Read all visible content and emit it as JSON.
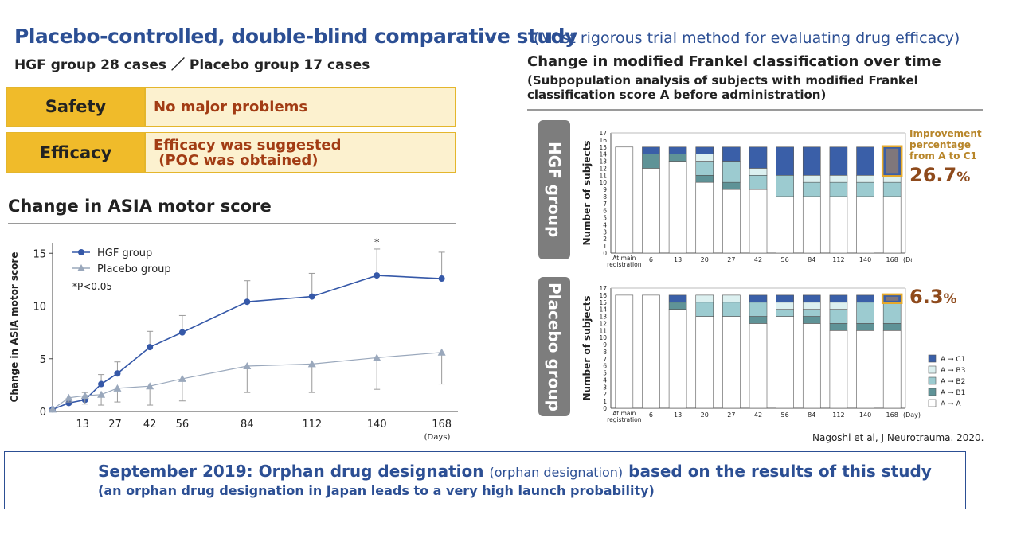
{
  "header": {
    "title": "Placebo-controlled, double-blind comparative study",
    "subtitle": "(Most rigorous trial method for evaluating drug efficacy)",
    "cases": "HGF group 28 cases ／ Placebo group 17 cases"
  },
  "summary": {
    "safety_label": "Safety",
    "safety_value": "No major problems",
    "efficacy_label": "Efficacy",
    "efficacy_value_1": "Efficacy was suggested",
    "efficacy_value_2": " (POC was obtained)"
  },
  "right_panel": {
    "title": "Change in modified Frankel classification over time",
    "subtitle": "(Subpopulation analysis of subjects with modified Frankel classification score A before administration)",
    "hgf_group_label": "HGF group",
    "placebo_group_label": "Placebo group",
    "improvement_label": "Improvement percentage from A to C1",
    "hgf_improvement": "26.7",
    "placebo_improvement": "6.3",
    "pct_sign": "%"
  },
  "citation": "Nagoshi et al, J Neurotrauma. 2020.",
  "bottom": {
    "line1_a": "September 2019: Orphan drug designation ",
    "line1_small": "(orphan designation)",
    "line1_b": " based on the results of this study",
    "line2": "(an orphan drug designation in Japan leads to a very high launch probability)"
  },
  "colors": {
    "hgf_line": "#3558a8",
    "placebo_line": "#9aa8bc",
    "A_C1": "#3a5fa8",
    "A_B3": "#dcf0f0",
    "A_B2": "#9ccbd0",
    "A_B1": "#5f9397",
    "A_A": "#ffffff",
    "highlight": "#e6a92a"
  },
  "chart_data": [
    {
      "type": "line",
      "title": "Change in ASIA motor score",
      "xlabel": "(Days)",
      "ylabel": "Change in ASIA motor score",
      "ylim": [
        0,
        16
      ],
      "xlim": [
        0,
        175
      ],
      "yticks": [
        0,
        5,
        10,
        15
      ],
      "xticks": [
        13,
        27,
        42,
        56,
        84,
        112,
        140,
        168
      ],
      "x": [
        0,
        7,
        14,
        21,
        28,
        42,
        56,
        84,
        112,
        140,
        168
      ],
      "annotation": "*P<0.05",
      "significance_marker": "*",
      "significance_x": 140,
      "legend_position": "top-left",
      "series": [
        {
          "name": "HGF group",
          "marker": "circle",
          "values": [
            0.2,
            0.8,
            1.1,
            2.6,
            3.6,
            6.1,
            7.5,
            10.4,
            10.9,
            12.9,
            12.6
          ],
          "error_upper": [
            0.2,
            1.2,
            1.8,
            3.5,
            4.7,
            7.6,
            9.1,
            12.4,
            13.1,
            15.4,
            15.1
          ]
        },
        {
          "name": "Placebo group",
          "marker": "triangle",
          "values": [
            0.2,
            1.3,
            1.5,
            1.6,
            2.2,
            2.4,
            3.1,
            4.3,
            4.5,
            5.1,
            5.6
          ],
          "error_lower": [
            0.2,
            0.9,
            0.7,
            0.6,
            0.9,
            0.6,
            1.0,
            1.8,
            1.8,
            2.1,
            2.6
          ]
        }
      ]
    },
    {
      "type": "bar",
      "stacked": true,
      "group": "HGF group",
      "ylabel": "Number of subjects",
      "xlabel": "(Day)",
      "ylim": [
        0,
        17
      ],
      "categories": [
        "At main registration",
        "6",
        "13",
        "20",
        "27",
        "42",
        "56",
        "84",
        "112",
        "140",
        "168"
      ],
      "series": [
        {
          "name": "A → A",
          "values": [
            15,
            12,
            13,
            10,
            9,
            9,
            8,
            8,
            8,
            8,
            8
          ]
        },
        {
          "name": "A → B1",
          "values": [
            0,
            2,
            1,
            1,
            1,
            0,
            0,
            0,
            0,
            0,
            0
          ]
        },
        {
          "name": "A → B2",
          "values": [
            0,
            0,
            0,
            2,
            3,
            2,
            3,
            2,
            2,
            2,
            2
          ]
        },
        {
          "name": "A → B3",
          "values": [
            0,
            0,
            0,
            1,
            0,
            1,
            0,
            1,
            1,
            1,
            1
          ]
        },
        {
          "name": "A → C1",
          "values": [
            0,
            1,
            1,
            1,
            2,
            3,
            4,
            4,
            4,
            4,
            4
          ]
        }
      ]
    },
    {
      "type": "bar",
      "stacked": true,
      "group": "Placebo group",
      "ylabel": "Number of subjects",
      "xlabel": "(Day)",
      "ylim": [
        0,
        17
      ],
      "categories": [
        "At main registration",
        "6",
        "13",
        "20",
        "27",
        "42",
        "56",
        "84",
        "112",
        "140",
        "168"
      ],
      "legend_position": "right",
      "series": [
        {
          "name": "A → A",
          "values": [
            16,
            16,
            14,
            13,
            13,
            12,
            13,
            12,
            11,
            11,
            11
          ]
        },
        {
          "name": "A → B1",
          "values": [
            0,
            0,
            1,
            0,
            0,
            1,
            0,
            1,
            1,
            1,
            1
          ]
        },
        {
          "name": "A → B2",
          "values": [
            0,
            0,
            0,
            2,
            2,
            2,
            1,
            1,
            2,
            3,
            3
          ]
        },
        {
          "name": "A → B3",
          "values": [
            0,
            0,
            0,
            1,
            1,
            0,
            1,
            1,
            1,
            0,
            0
          ]
        },
        {
          "name": "A → C1",
          "values": [
            0,
            0,
            1,
            0,
            0,
            1,
            1,
            1,
            1,
            1,
            1
          ]
        }
      ]
    }
  ]
}
